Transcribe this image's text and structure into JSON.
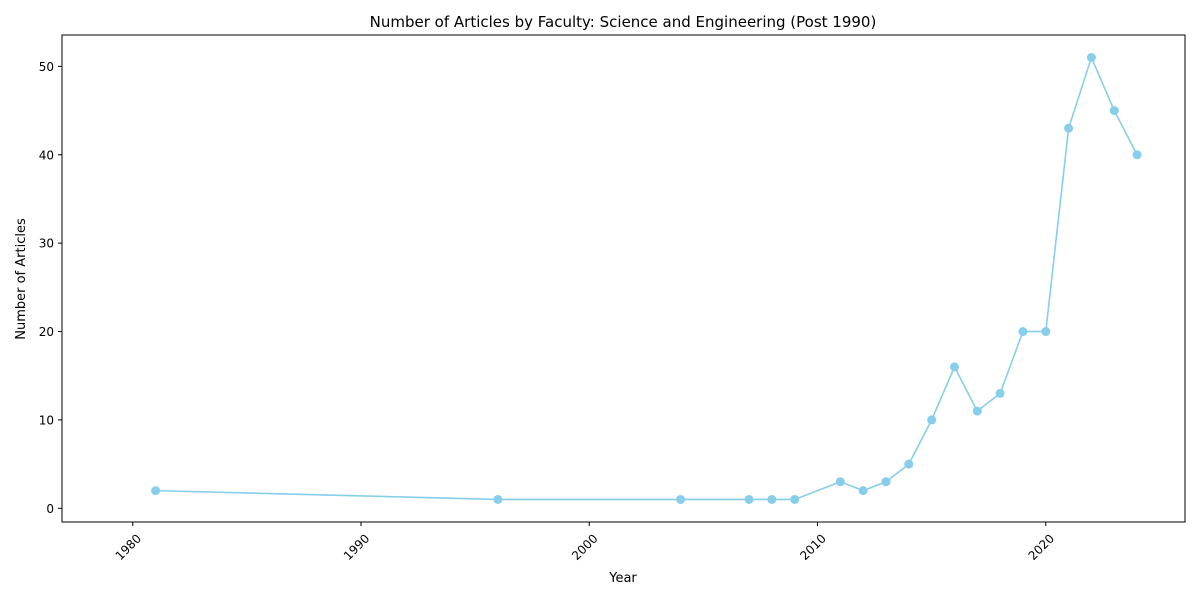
{
  "chart_data": {
    "type": "line",
    "title": "Number of Articles by Faculty: Science and Engineering (Post 1990)",
    "xlabel": "Year",
    "ylabel": "Number of Articles",
    "xlim": [
      1976.9,
      2026.1
    ],
    "ylim": [
      -1.55,
      53.55
    ],
    "x_ticks": [
      1980,
      1990,
      2000,
      2010,
      2020
    ],
    "y_ticks": [
      0,
      10,
      20,
      30,
      40,
      50
    ],
    "x_tick_rotation_deg": -45,
    "grid": false,
    "legend": "none",
    "series": [
      {
        "color": "#87ceeb",
        "marker": "circle",
        "x": [
          1981,
          1996,
          2004,
          2007,
          2008,
          2009,
          2011,
          2012,
          2013,
          2014,
          2015,
          2016,
          2017,
          2018,
          2019,
          2020,
          2021,
          2022,
          2023,
          2024
        ],
        "values": [
          2,
          1,
          1,
          1,
          1,
          1,
          3,
          2,
          3,
          5,
          10,
          16,
          11,
          13,
          20,
          20,
          43,
          51,
          45,
          40
        ]
      }
    ]
  }
}
